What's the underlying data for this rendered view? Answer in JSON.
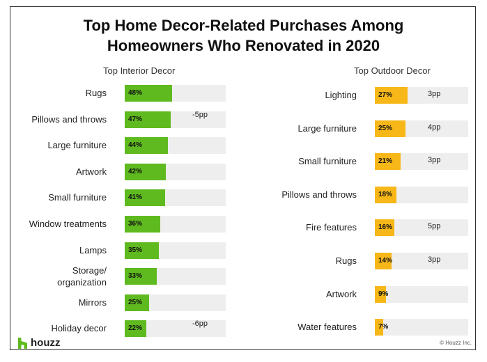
{
  "title_line1": "Top Home Decor-Related Purchases Among",
  "title_line2": "Homeowners Who Renovated in 2020",
  "colors": {
    "interior": "#5fba1f",
    "outdoor": "#f7b718",
    "track": "#eeeeee"
  },
  "chart_data": [
    {
      "type": "bar",
      "orientation": "horizontal",
      "title": "Top Interior Decor",
      "categories": [
        "Rugs",
        "Pillows and throws",
        "Large furniture",
        "Artwork",
        "Small furniture",
        "Window treatments",
        "Lamps",
        "Storage/ organization",
        "Mirrors",
        "Holiday decor"
      ],
      "values": [
        48,
        47,
        44,
        42,
        41,
        36,
        35,
        33,
        25,
        22
      ],
      "value_labels": [
        "48%",
        "47%",
        "44%",
        "42%",
        "41%",
        "36%",
        "35%",
        "33%",
        "25%",
        "22%"
      ],
      "changes": [
        "",
        "-5pp",
        "",
        "",
        "",
        "",
        "",
        "",
        "",
        "-6pp"
      ],
      "xlim": [
        0,
        100
      ]
    },
    {
      "type": "bar",
      "orientation": "horizontal",
      "title": "Top Outdoor Decor",
      "categories": [
        "Lighting",
        "Large furniture",
        "Small furniture",
        "Pillows and throws",
        "Fire features",
        "Rugs",
        "Artwork",
        "Water features"
      ],
      "values": [
        27,
        25,
        21,
        18,
        16,
        14,
        9,
        7
      ],
      "value_labels": [
        "27%",
        "25%",
        "21%",
        "18%",
        "16%",
        "14%",
        "9%",
        "7%"
      ],
      "changes": [
        "3pp",
        "4pp",
        "3pp",
        "",
        "5pp",
        "3pp",
        "",
        ""
      ],
      "xlim": [
        0,
        100
      ]
    }
  ],
  "logo_text": "houzz",
  "copyright": "© Houzz Inc."
}
